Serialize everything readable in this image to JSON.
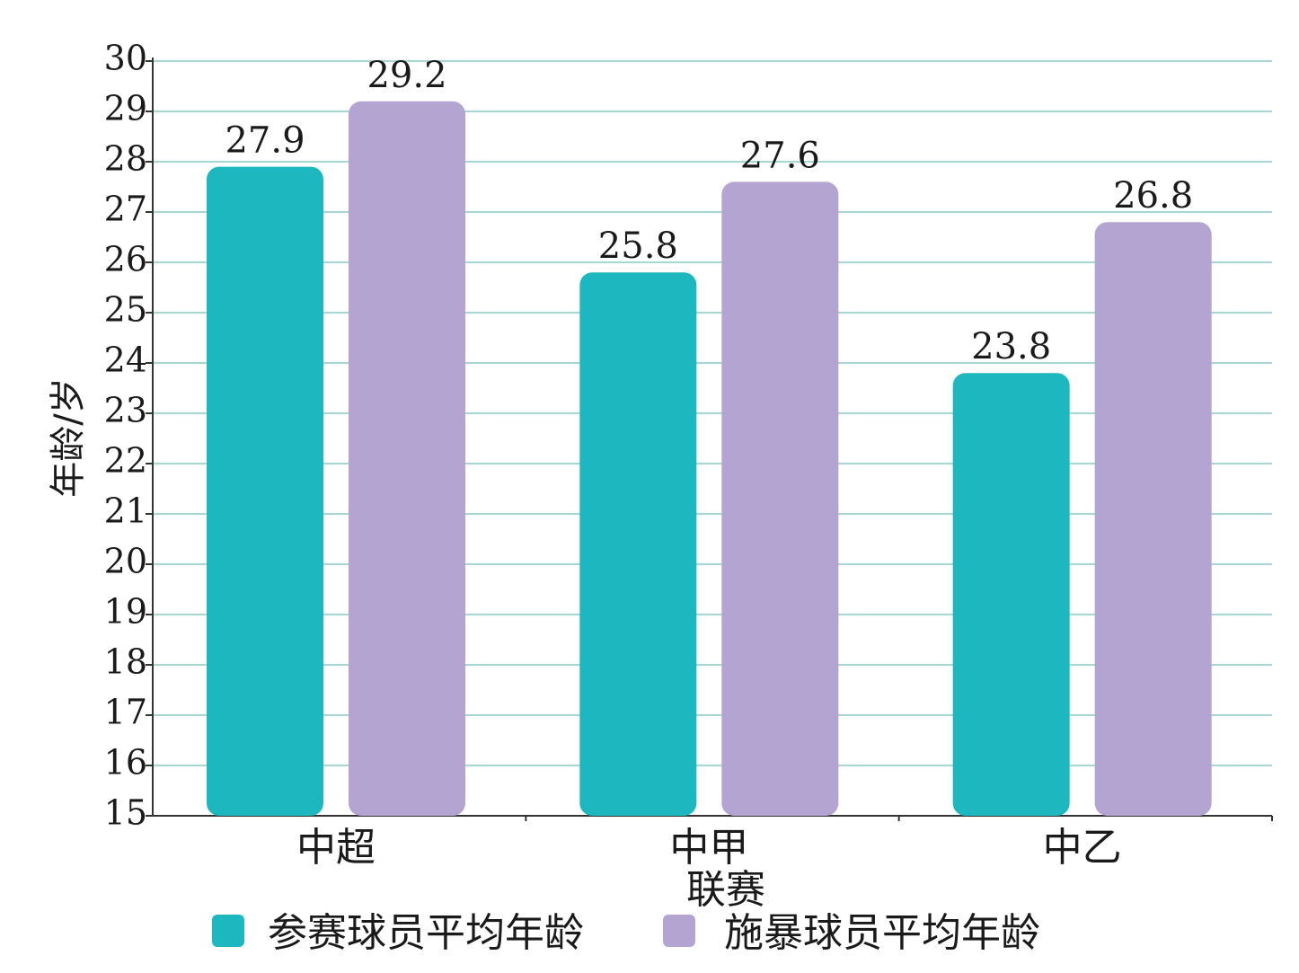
{
  "chart_data": {
    "type": "bar",
    "title": "",
    "ylabel": "年龄/岁",
    "xlabel": "联赛",
    "categories": [
      "中超",
      "中甲",
      "中乙"
    ],
    "series": [
      {
        "name": "参赛球员平均年龄",
        "color": "#1db7c0",
        "values": [
          27.9,
          25.8,
          23.8
        ]
      },
      {
        "name": "施暴球员平均年龄",
        "color": "#b4a4d2",
        "values": [
          29.2,
          27.6,
          26.8
        ]
      }
    ],
    "ylim": [
      15,
      30
    ],
    "yticks": [
      15,
      16,
      17,
      18,
      19,
      20,
      21,
      22,
      23,
      24,
      25,
      26,
      27,
      28,
      29,
      30
    ],
    "grid": true,
    "grid_color": "#a9d6d2",
    "legend_position": "bottom"
  }
}
